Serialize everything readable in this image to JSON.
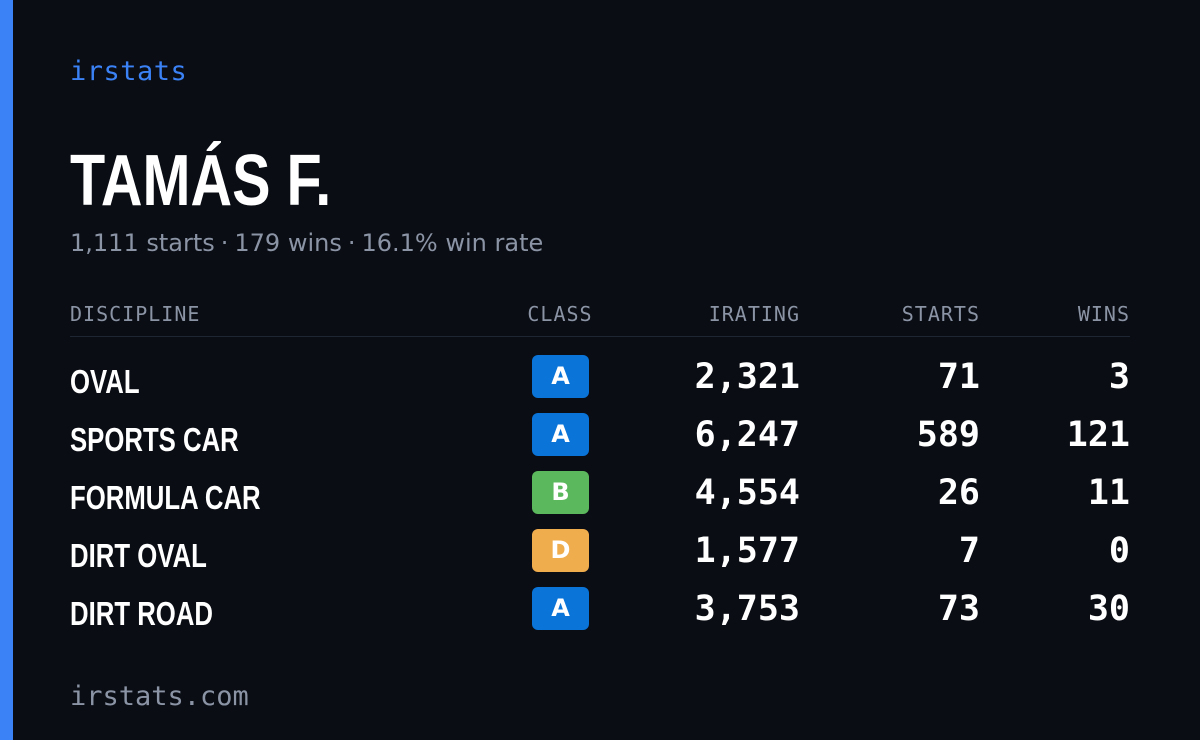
{
  "brand": "irstats",
  "driver_name": "TAMÁS F.",
  "summary": {
    "starts": "1,111 starts",
    "wins": "179 wins",
    "win_rate": "16.1% win rate",
    "separator": "·"
  },
  "table": {
    "headers": {
      "discipline": "DISCIPLINE",
      "class": "CLASS",
      "irating": "IRATING",
      "starts": "STARTS",
      "wins": "WINS"
    },
    "rows": [
      {
        "discipline": "OVAL",
        "class": "A",
        "class_color": "#0b74d8",
        "irating": "2,321",
        "starts": "71",
        "wins": "3"
      },
      {
        "discipline": "SPORTS CAR",
        "class": "A",
        "class_color": "#0b74d8",
        "irating": "6,247",
        "starts": "589",
        "wins": "121"
      },
      {
        "discipline": "FORMULA CAR",
        "class": "B",
        "class_color": "#5cb85c",
        "irating": "4,554",
        "starts": "26",
        "wins": "11"
      },
      {
        "discipline": "DIRT OVAL",
        "class": "D",
        "class_color": "#f0ad4e",
        "irating": "1,577",
        "starts": "7",
        "wins": "0"
      },
      {
        "discipline": "DIRT ROAD",
        "class": "A",
        "class_color": "#0b74d8",
        "irating": "3,753",
        "starts": "73",
        "wins": "30"
      }
    ]
  },
  "footer": "irstats.com",
  "colors": {
    "background": "#0a0d14",
    "accent": "#3b82f6",
    "muted_text": "#8b94a5"
  }
}
